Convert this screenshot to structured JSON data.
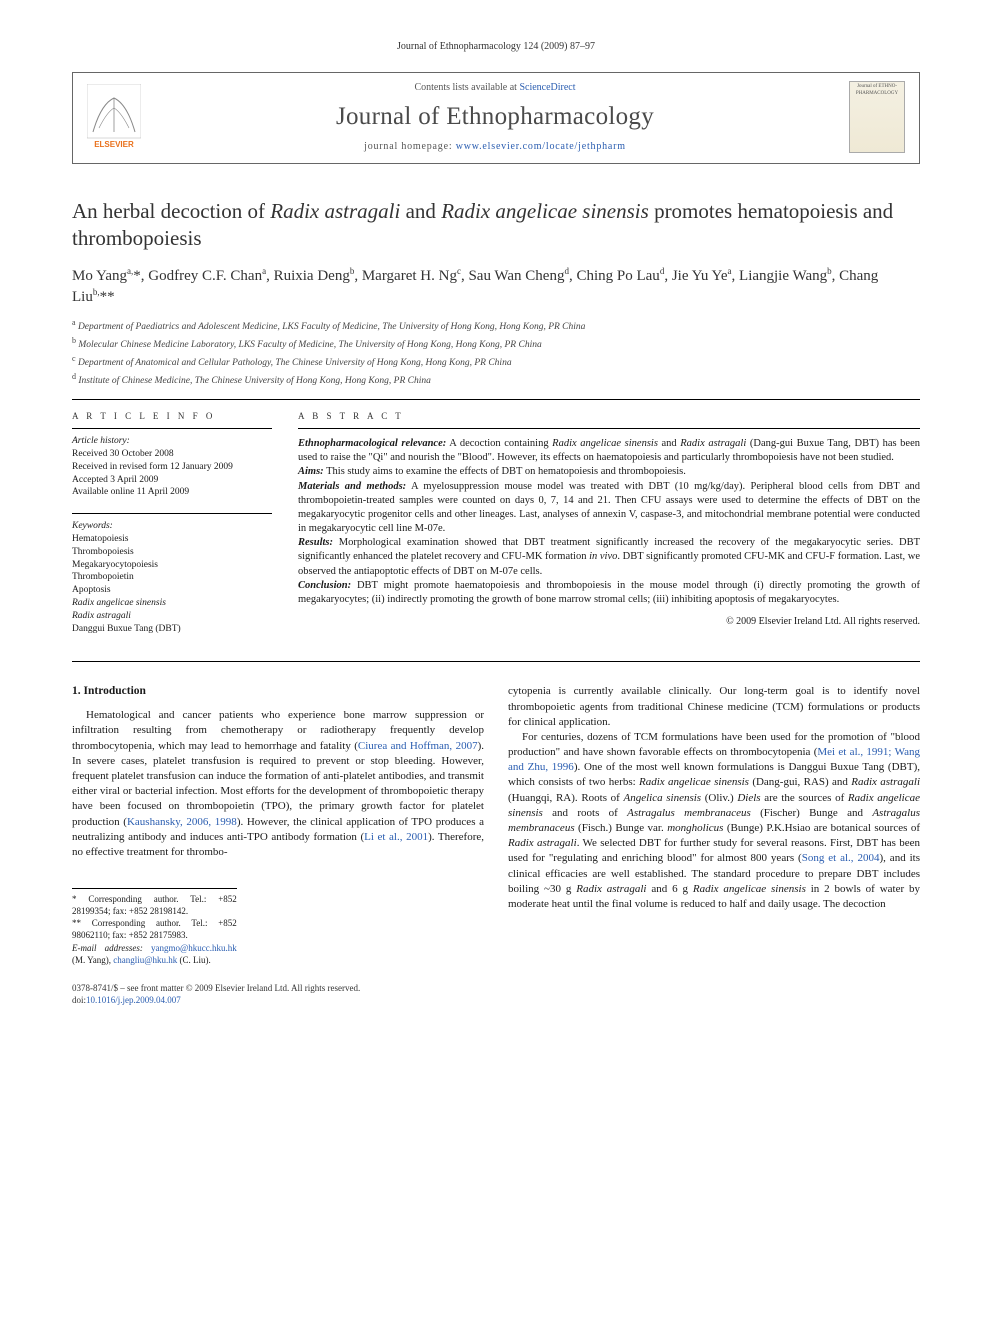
{
  "running_head": "Journal of Ethnopharmacology 124 (2009) 87–97",
  "header": {
    "contents_line_pre": "Contents lists available at ",
    "contents_link": "ScienceDirect",
    "journal_name": "Journal of Ethnopharmacology",
    "homepage_pre": "journal homepage: ",
    "homepage_link": "www.elsevier.com/locate/jethpharm",
    "cover_thumb_text": "Journal of ETHNO-PHARMACOLOGY"
  },
  "title_html": "An herbal decoction of <em>Radix astragali</em> and <em>Radix angelicae sinensis</em> promotes hematopoiesis and thrombopoiesis",
  "authors_html": "Mo Yang<sup>a,</sup>*, Godfrey C.F. Chan<sup>a</sup>, Ruixia Deng<sup>b</sup>, Margaret H. Ng<sup>c</sup>, Sau Wan Cheng<sup>d</sup>, Ching Po Lau<sup>d</sup>, Jie Yu Ye<sup>a</sup>, Liangjie Wang<sup>b</sup>, Chang Liu<sup>b,</sup>**",
  "affiliations": [
    {
      "sup": "a",
      "text": "Department of Paediatrics and Adolescent Medicine, LKS Faculty of Medicine, The University of Hong Kong, Hong Kong, PR China"
    },
    {
      "sup": "b",
      "text": "Molecular Chinese Medicine Laboratory, LKS Faculty of Medicine, The University of Hong Kong, Hong Kong, PR China"
    },
    {
      "sup": "c",
      "text": "Department of Anatomical and Cellular Pathology, The Chinese University of Hong Kong, Hong Kong, PR China"
    },
    {
      "sup": "d",
      "text": "Institute of Chinese Medicine, The Chinese University of Hong Kong, Hong Kong, PR China"
    }
  ],
  "info": {
    "article_info_label": "A R T I C L E   I N F O",
    "abstract_label": "A B S T R A C T",
    "history_label": "Article history:",
    "history_lines": [
      "Received 30 October 2008",
      "Received in revised form 12 January 2009",
      "Accepted 3 April 2009",
      "Available online 11 April 2009"
    ],
    "keywords_label": "Keywords:",
    "keywords": [
      "Hematopoiesis",
      "Thrombopoiesis",
      "Megakaryocytopoiesis",
      "Thrombopoietin",
      "Apoptosis",
      "Radix angelicae sinensis",
      "Radix astragali",
      "Danggui Buxue Tang (DBT)"
    ]
  },
  "abstract_html": "<p><span class='lead'><em>Ethnopharmacological relevance:</em></span> A decoction containing <em>Radix angelicae sinensis</em> and <em>Radix astragali</em> (Dang-gui Buxue Tang, DBT) has been used to raise the \"Qi\" and nourish the \"Blood\". However, its effects on haematopoiesis and particularly thrombopoiesis have not been studied.</p><p><span class='lead'><em>Aims:</em></span> This study aims to examine the effects of DBT on hematopoiesis and thrombopoiesis.</p><p><span class='lead'><em>Materials and methods:</em></span> A myelosuppression mouse model was treated with DBT (10 mg/kg/day). Peripheral blood cells from DBT and thrombopoietin-treated samples were counted on days 0, 7, 14 and 21. Then CFU assays were used to determine the effects of DBT on the megakaryocytic progenitor cells and other lineages. Last, analyses of annexin V, caspase-3, and mitochondrial membrane potential were conducted in megakaryocytic cell line M-07e.</p><p><span class='lead'><em>Results:</em></span> Morphological examination showed that DBT treatment significantly increased the recovery of the megakaryocytic series. DBT significantly enhanced the platelet recovery and CFU-MK formation <em>in vivo</em>. DBT significantly promoted CFU-MK and CFU-F formation. Last, we observed the antiapoptotic effects of DBT on M-07e cells.</p><p><span class='lead'><em>Conclusion:</em></span> DBT might promote haematopoiesis and thrombopoiesis in the mouse model through (i) directly promoting the growth of megakaryocytes; (ii) indirectly promoting the growth of bone marrow stromal cells; (iii) inhibiting apoptosis of megakaryocytes.</p>",
  "copyright": "© 2009 Elsevier Ireland Ltd. All rights reserved.",
  "body": {
    "intro_heading": "1. Introduction",
    "col1_html": "Hematological and cancer patients who experience bone marrow suppression or infiltration resulting from chemotherapy or radiotherapy frequently develop thrombocytopenia, which may lead to hemorrhage and fatality (<a class='ref' href='#'>Ciurea and Hoffman, 2007</a>). In severe cases, platelet transfusion is required to prevent or stop bleeding. However, frequent platelet transfusion can induce the formation of anti-platelet antibodies, and transmit either viral or bacterial infection. Most efforts for the development of thrombopoietic therapy have been focused on thrombopoietin (TPO), the primary growth factor for platelet production (<a class='ref' href='#'>Kaushansky, 2006, 1998</a>). However, the clinical application of TPO produces a neutralizing antibody and induces anti-TPO antibody formation (<a class='ref' href='#'>Li et al., 2001</a>). Therefore, no effective treatment for thrombo-",
    "col2_html_p1": "cytopenia is currently available clinically. Our long-term goal is to identify novel thrombopoietic agents from traditional Chinese medicine (TCM) formulations or products for clinical application.",
    "col2_html_p2": "For centuries, dozens of TCM formulations have been used for the promotion of \"blood production\" and have shown favorable effects on thrombocytopenia (<a class='ref' href='#'>Mei et al., 1991; Wang and Zhu, 1996</a>). One of the most well known formulations is Danggui Buxue Tang (DBT), which consists of two herbs: <em>Radix angelicae sinensis</em> (Dang-gui, RAS) and <em>Radix astragali</em> (Huangqi, RA). Roots of <em>Angelica sinensis</em> (Oliv.) <em>Diels</em> are the sources of <em>Radix angelicae sinensis</em> and roots of <em>Astragalus membranaceus</em> (Fischer) Bunge and <em>Astragalus membranaceus</em> (Fisch.) Bunge var. <em>mongholicus</em> (Bunge) P.K.Hsiao are botanical sources of <em>Radix astragali</em>. We selected DBT for further study for several reasons. First, DBT has been used for \"regulating and enriching blood\" for almost 800 years (<a class='ref' href='#'>Song et al., 2004</a>), and its clinical efficacies are well established. The standard procedure to prepare DBT includes boiling ~30 g <em>Radix astragali</em> and 6 g <em>Radix angelicae sinensis</em> in 2 bowls of water by moderate heat until the final volume is reduced to half and daily usage. The decoction"
  },
  "footnotes": {
    "corr1": "* Corresponding author. Tel.: +852 28199354; fax: +852 28198142.",
    "corr2": "** Corresponding author. Tel.: +852 98062110; fax: +852 28175983.",
    "email_pre": "E-mail addresses: ",
    "email1": "yangmo@hkucc.hku.hk",
    "email1_who": " (M. Yang), ",
    "email2": "changliu@hku.hk",
    "email2_who": " (C. Liu)."
  },
  "footer": {
    "left_line1": "0378-8741/$ – see front matter © 2009 Elsevier Ireland Ltd. All rights reserved.",
    "doi_pre": "doi:",
    "doi_link": "10.1016/j.jep.2009.04.007"
  },
  "colors": {
    "link": "#2a5db0",
    "text": "#1a1a1a",
    "rule": "#000000",
    "elsevier_orange": "#e9711c"
  }
}
